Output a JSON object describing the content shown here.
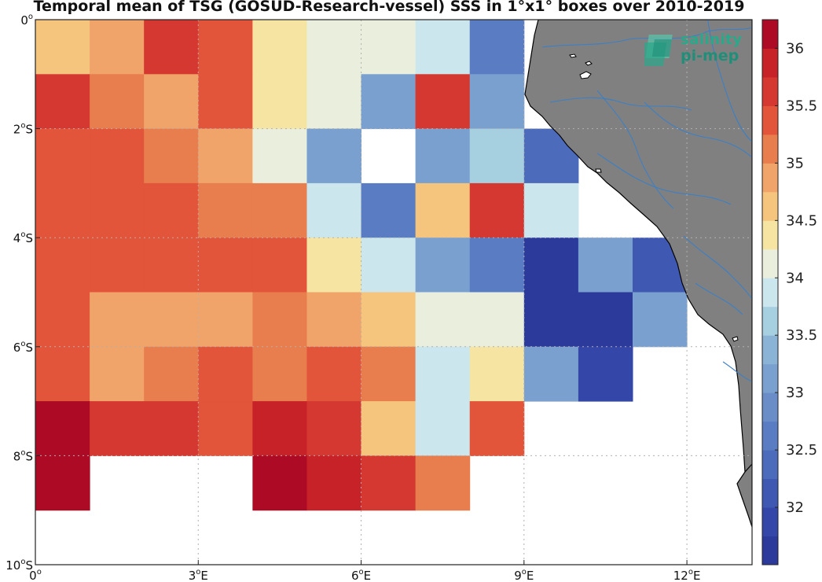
{
  "title": "Temporal mean of TSG (GOSUD-Research-vessel) SSS in 1°x1° boxes over 2010-2019",
  "logo": {
    "line1": "salinity",
    "line2": "pi-mep"
  },
  "colors": {
    "land": "#808080",
    "coast": "#000000",
    "rivers": "#3d7fc4",
    "grid": "#b0b0b0",
    "nodata": "#ffffff"
  },
  "chart_data": {
    "type": "heatmap",
    "title": "Temporal mean of TSG (GOSUD-Research-vessel) SSS in 1°x1° boxes over 2010-2019",
    "x_range_lon": [
      0,
      13.2
    ],
    "y_range_lat": [
      -10,
      0
    ],
    "x_ticks": [
      {
        "lon": 0,
        "label": "0",
        "sup": "o",
        "suffix": ""
      },
      {
        "lon": 3,
        "label": "3",
        "sup": "o",
        "suffix": "E"
      },
      {
        "lon": 6,
        "label": "6",
        "sup": "o",
        "suffix": "E"
      },
      {
        "lon": 9,
        "label": "9",
        "sup": "o",
        "suffix": "E"
      },
      {
        "lon": 12,
        "label": "12",
        "sup": "o",
        "suffix": "E"
      }
    ],
    "y_ticks": [
      {
        "lat": 0,
        "label": "0",
        "sup": "o",
        "suffix": ""
      },
      {
        "lat": -2,
        "label": "2",
        "sup": "o",
        "suffix": "S"
      },
      {
        "lat": -4,
        "label": "4",
        "sup": "o",
        "suffix": "S"
      },
      {
        "lat": -6,
        "label": "6",
        "sup": "o",
        "suffix": "S"
      },
      {
        "lat": -8,
        "label": "8",
        "sup": "o",
        "suffix": "S"
      },
      {
        "lat": -10,
        "label": "10",
        "sup": "o",
        "suffix": "S"
      }
    ],
    "grid": true,
    "cell_size_deg": 1,
    "rows_from_lat0_southward": [
      [
        34.5,
        34.8,
        35.6,
        35.3,
        34.3,
        34.0,
        34.0,
        33.8,
        32.5
      ],
      [
        35.5,
        35.1,
        34.8,
        35.3,
        34.3,
        34.0,
        33.2,
        35.6,
        33.0
      ],
      [
        35.3,
        35.3,
        35.1,
        34.8,
        34.0,
        33.0,
        null,
        33.0,
        33.5,
        32.4
      ],
      [
        35.3,
        35.3,
        35.3,
        35.1,
        35.1,
        33.8,
        32.6,
        34.6,
        35.5,
        33.8
      ],
      [
        35.3,
        35.3,
        35.3,
        35.3,
        35.3,
        34.3,
        33.8,
        33.2,
        32.6,
        31.6,
        33.0,
        32.2
      ],
      [
        35.3,
        34.8,
        34.8,
        34.8,
        35.1,
        34.8,
        34.6,
        34.0,
        34.0,
        31.6,
        31.6,
        33.2
      ],
      [
        35.3,
        34.8,
        35.1,
        35.3,
        35.1,
        35.3,
        35.1,
        33.8,
        34.3,
        33.0,
        31.9
      ],
      [
        36.1,
        35.6,
        35.5,
        35.3,
        35.8,
        35.6,
        34.6,
        33.8,
        35.3
      ],
      [
        36.1,
        null,
        null,
        null,
        36.1,
        35.9,
        35.6,
        35.1
      ]
    ],
    "colorbar": {
      "label": "",
      "min": 31.5,
      "max": 36.25,
      "levels": 19,
      "ticks": [
        32,
        32.5,
        33,
        33.5,
        34,
        34.5,
        35,
        35.5,
        36
      ],
      "tick_labels": [
        "32",
        "32.5",
        "33",
        "33.5",
        "34",
        "34.5",
        "35",
        "35.5",
        "36"
      ],
      "colors": [
        "#2c3a9b",
        "#3446a8",
        "#3f59b3",
        "#4d6bbb",
        "#5a7cc2",
        "#6a8dc8",
        "#7aa0cf",
        "#8bb3d6",
        "#a6cfe0",
        "#cbe6ec",
        "#e9efdc",
        "#f6e4a3",
        "#f5c57e",
        "#f0a46a",
        "#e87d4e",
        "#e2553a",
        "#d53830",
        "#c72228",
        "#ad0a25"
      ]
    }
  }
}
